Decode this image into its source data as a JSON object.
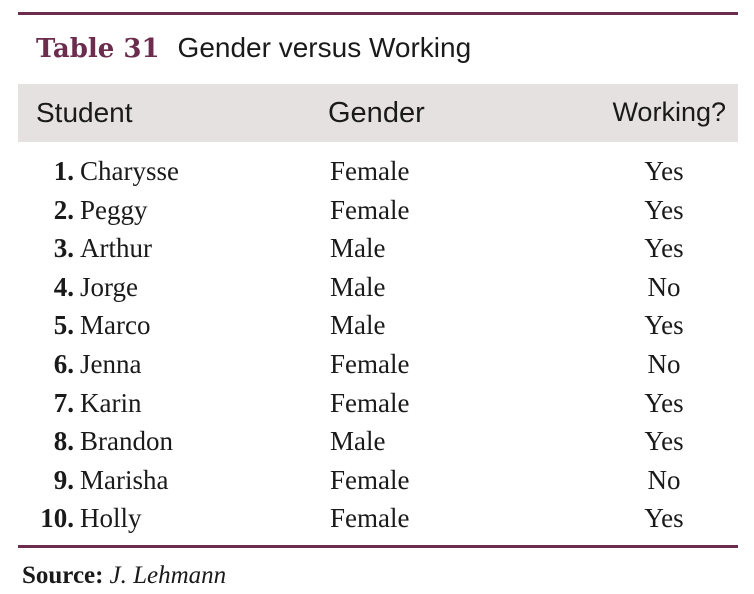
{
  "table": {
    "number": "Table 31",
    "caption": "Gender versus Working",
    "headers": {
      "student": "Student",
      "gender": "Gender",
      "working": "Working?"
    },
    "rows": [
      {
        "num": "1.",
        "name": "Charysse",
        "gender": "Female",
        "working": "Yes"
      },
      {
        "num": "2.",
        "name": "Peggy",
        "gender": "Female",
        "working": "Yes"
      },
      {
        "num": "3.",
        "name": "Arthur",
        "gender": "Male",
        "working": "Yes"
      },
      {
        "num": "4.",
        "name": "Jorge",
        "gender": "Male",
        "working": "No"
      },
      {
        "num": "5.",
        "name": "Marco",
        "gender": "Male",
        "working": "Yes"
      },
      {
        "num": "6.",
        "name": "Jenna",
        "gender": "Female",
        "working": "No"
      },
      {
        "num": "7.",
        "name": "Karin",
        "gender": "Female",
        "working": "Yes"
      },
      {
        "num": "8.",
        "name": "Brandon",
        "gender": "Male",
        "working": "Yes"
      },
      {
        "num": "9.",
        "name": "Marisha",
        "gender": "Female",
        "working": "No"
      },
      {
        "num": "10.",
        "name": "Holly",
        "gender": "Female",
        "working": "Yes"
      }
    ],
    "source_label": "Source:",
    "source_value": "J. Lehmann"
  },
  "colors": {
    "accent": "#6b2c4e",
    "header_band": "#e6e1e1",
    "text": "#1a1a1a"
  }
}
